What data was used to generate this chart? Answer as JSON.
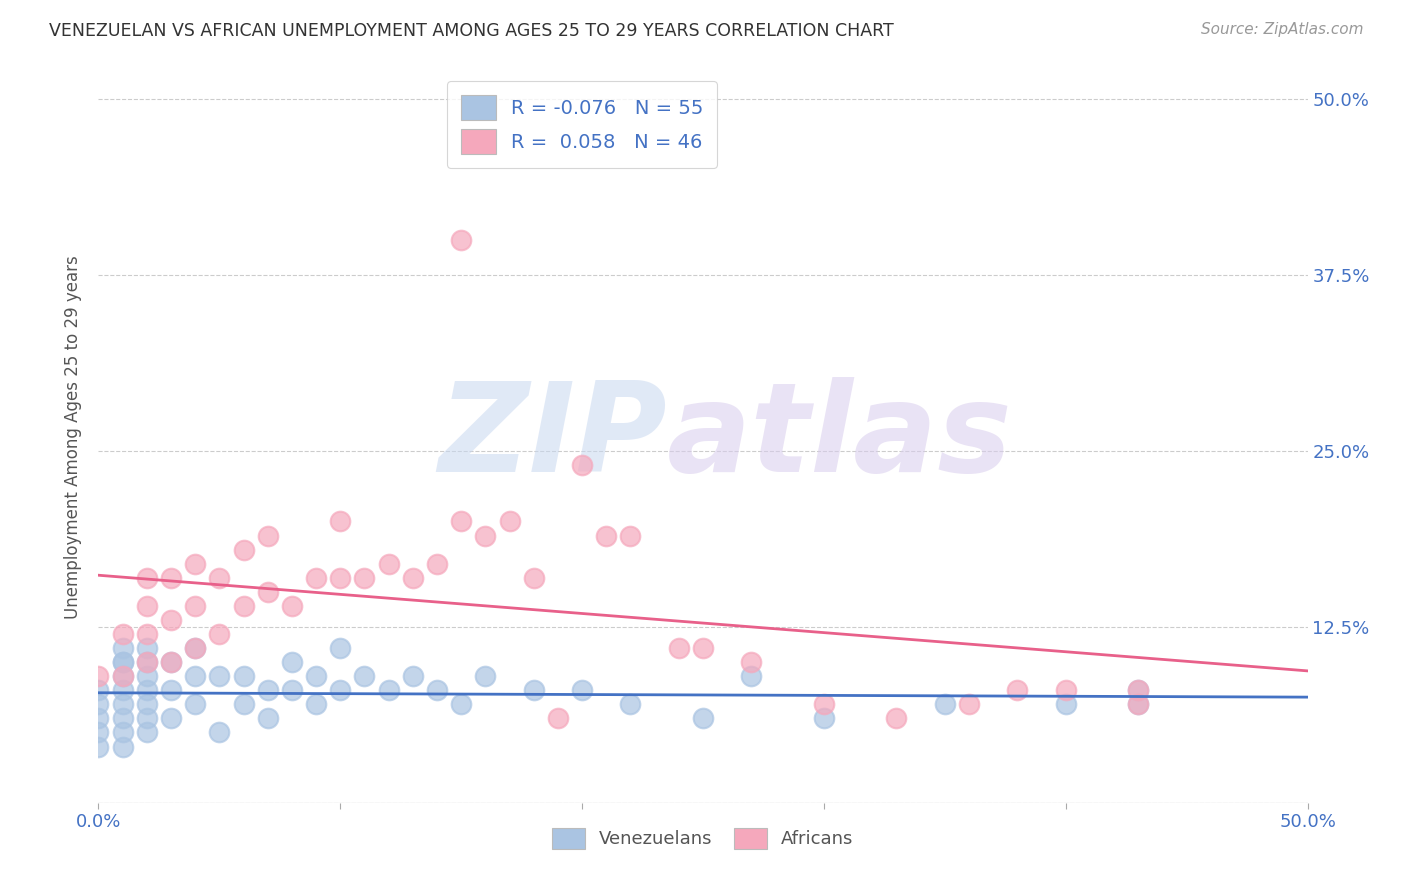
{
  "title": "VENEZUELAN VS AFRICAN UNEMPLOYMENT AMONG AGES 25 TO 29 YEARS CORRELATION CHART",
  "source": "Source: ZipAtlas.com",
  "ylabel": "Unemployment Among Ages 25 to 29 years",
  "xlim": [
    0.0,
    0.5
  ],
  "ylim": [
    0.0,
    0.52
  ],
  "venezuelan_R": -0.076,
  "venezuelan_N": 55,
  "african_R": 0.058,
  "african_N": 46,
  "venezuelan_color": "#aac4e2",
  "african_color": "#f5a8bc",
  "venezuelan_line_color": "#4472c4",
  "african_line_color": "#e8608a",
  "background_color": "#ffffff",
  "grid_color": "#cccccc",
  "venezuelan_x": [
    0.0,
    0.0,
    0.0,
    0.0,
    0.0,
    0.01,
    0.01,
    0.01,
    0.01,
    0.01,
    0.01,
    0.01,
    0.01,
    0.01,
    0.02,
    0.02,
    0.02,
    0.02,
    0.02,
    0.02,
    0.02,
    0.03,
    0.03,
    0.03,
    0.04,
    0.04,
    0.04,
    0.05,
    0.05,
    0.06,
    0.06,
    0.07,
    0.07,
    0.08,
    0.08,
    0.09,
    0.09,
    0.1,
    0.1,
    0.11,
    0.12,
    0.13,
    0.14,
    0.15,
    0.16,
    0.18,
    0.2,
    0.22,
    0.25,
    0.27,
    0.3,
    0.35,
    0.4,
    0.43,
    0.43
  ],
  "venezuelan_y": [
    0.04,
    0.05,
    0.06,
    0.07,
    0.08,
    0.04,
    0.05,
    0.06,
    0.07,
    0.08,
    0.09,
    0.1,
    0.1,
    0.11,
    0.05,
    0.06,
    0.07,
    0.08,
    0.09,
    0.1,
    0.11,
    0.06,
    0.08,
    0.1,
    0.07,
    0.09,
    0.11,
    0.05,
    0.09,
    0.07,
    0.09,
    0.06,
    0.08,
    0.08,
    0.1,
    0.07,
    0.09,
    0.08,
    0.11,
    0.09,
    0.08,
    0.09,
    0.08,
    0.07,
    0.09,
    0.08,
    0.08,
    0.07,
    0.06,
    0.09,
    0.06,
    0.07,
    0.07,
    0.07,
    0.08
  ],
  "african_x": [
    0.0,
    0.01,
    0.01,
    0.02,
    0.02,
    0.02,
    0.02,
    0.03,
    0.03,
    0.03,
    0.04,
    0.04,
    0.04,
    0.05,
    0.05,
    0.06,
    0.06,
    0.07,
    0.07,
    0.08,
    0.09,
    0.1,
    0.1,
    0.11,
    0.12,
    0.13,
    0.14,
    0.15,
    0.16,
    0.17,
    0.18,
    0.19,
    0.2,
    0.21,
    0.22,
    0.24,
    0.25,
    0.27,
    0.3,
    0.33,
    0.36,
    0.38,
    0.4,
    0.43,
    0.43,
    0.15
  ],
  "african_y": [
    0.09,
    0.09,
    0.12,
    0.1,
    0.12,
    0.14,
    0.16,
    0.1,
    0.13,
    0.16,
    0.11,
    0.14,
    0.17,
    0.12,
    0.16,
    0.14,
    0.18,
    0.15,
    0.19,
    0.14,
    0.16,
    0.16,
    0.2,
    0.16,
    0.17,
    0.16,
    0.17,
    0.2,
    0.19,
    0.2,
    0.16,
    0.06,
    0.24,
    0.19,
    0.19,
    0.11,
    0.11,
    0.1,
    0.07,
    0.06,
    0.07,
    0.08,
    0.08,
    0.07,
    0.08,
    0.4
  ]
}
